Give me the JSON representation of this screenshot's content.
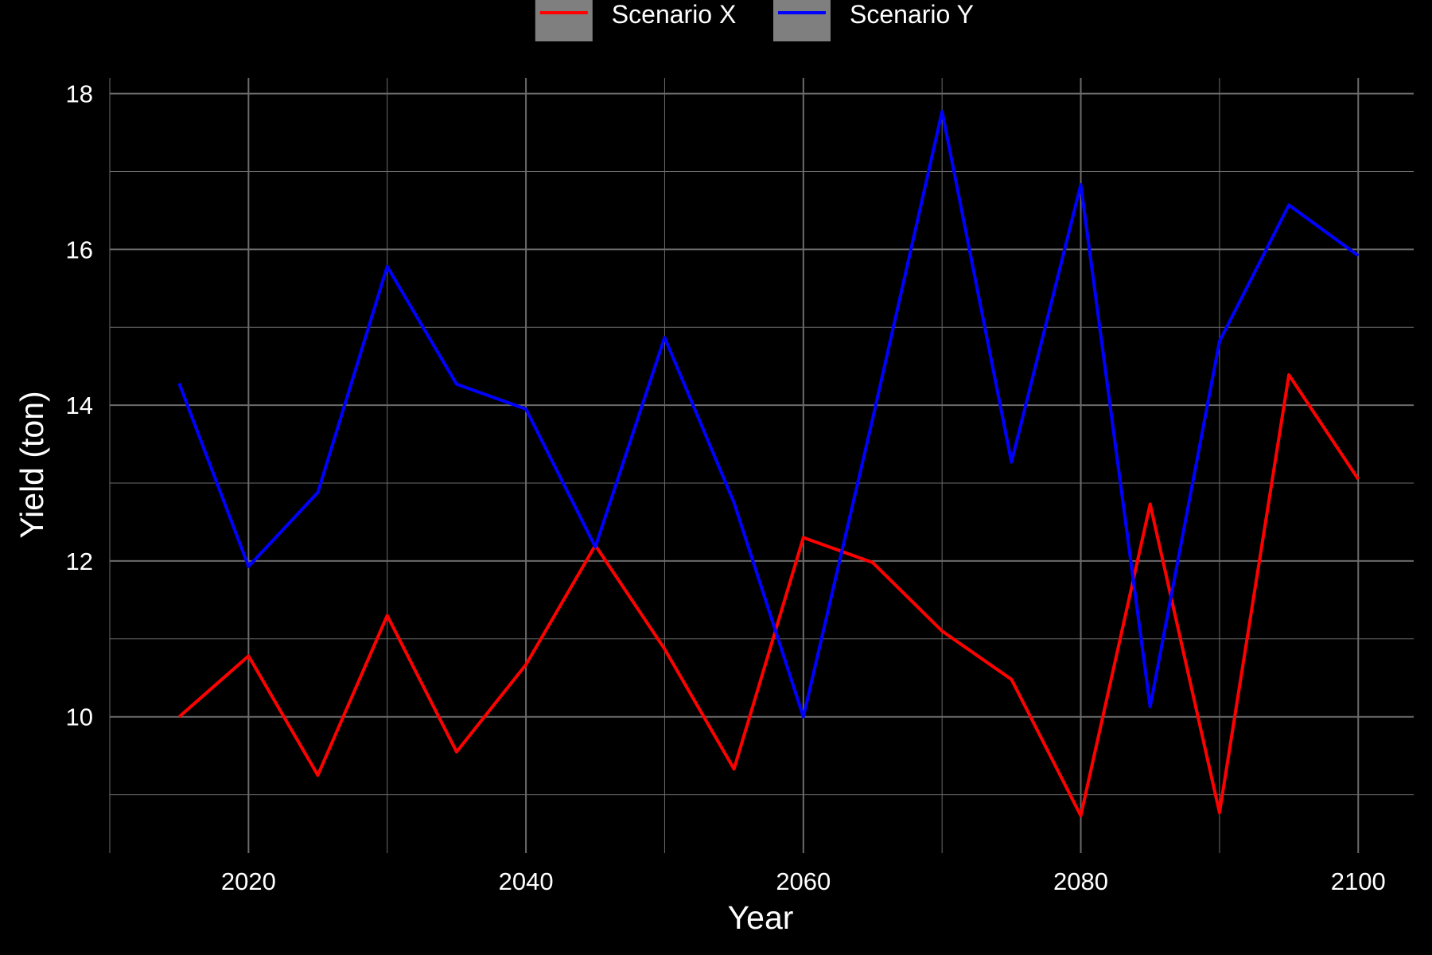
{
  "chart_data": {
    "type": "line",
    "title": "",
    "xlabel": "Year",
    "ylabel": "Yield (ton)",
    "x": [
      2015,
      2020,
      2025,
      2030,
      2035,
      2040,
      2045,
      2050,
      2055,
      2060,
      2065,
      2070,
      2075,
      2080,
      2085,
      2090,
      2095,
      2100
    ],
    "xlim": [
      2010,
      2104
    ],
    "ylim": [
      8.25,
      18.2
    ],
    "x_ticks": [
      2020,
      2040,
      2060,
      2080,
      2100
    ],
    "x_tick_labels": [
      "2020",
      "2040",
      "2060",
      "2080",
      "2100"
    ],
    "y_ticks": [
      10,
      12,
      14,
      16,
      18
    ],
    "y_tick_labels": [
      "10",
      "12",
      "14",
      "16",
      "18"
    ],
    "grid": true,
    "background": "#000000",
    "grid_color": "#6b6b6b",
    "legend_position": "top",
    "series": [
      {
        "name": "Scenario X",
        "color": "#ff0000",
        "values": [
          10.0,
          10.78,
          9.25,
          11.3,
          9.55,
          10.67,
          12.2,
          10.87,
          9.33,
          12.3,
          11.98,
          11.1,
          10.48,
          8.73,
          12.73,
          8.77,
          14.39,
          13.05
        ]
      },
      {
        "name": "Scenario Y",
        "color": "#0000ff",
        "values": [
          14.28,
          11.93,
          12.88,
          15.78,
          14.27,
          13.95,
          12.18,
          14.87,
          12.75,
          10.0,
          13.83,
          17.77,
          13.27,
          16.83,
          10.13,
          14.82,
          16.57,
          15.92
        ]
      }
    ]
  }
}
